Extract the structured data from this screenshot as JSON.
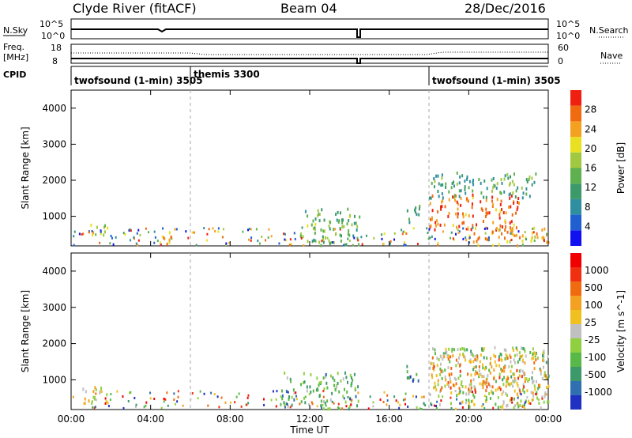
{
  "header": {
    "title": "Clyde River (fitACF)",
    "beam": "Beam 04",
    "date": "28/Dec/2016"
  },
  "strip_panels": {
    "nsky_label": "N.Sky",
    "nsky_ticks": [
      "10^5",
      "10^0"
    ],
    "nsearch_label": "N.Search",
    "nsearch_ticks": [
      "10^5",
      "10^0"
    ],
    "freq_label_1": "Freq.",
    "freq_label_2": "[MHz]",
    "freq_ticks": [
      "18",
      "8"
    ],
    "nave_label": "Nave",
    "nave_ticks": [
      "60",
      "0"
    ],
    "cpid_label": "CPID"
  },
  "cpid_segments": [
    {
      "label": "twofsound (1-min) 3505",
      "start_hour": 0
    },
    {
      "label": "themis 3300",
      "start_hour": 6
    },
    {
      "label": "twofsound (1-min) 3505",
      "start_hour": 18
    }
  ],
  "chart_data": [
    {
      "type": "heatmap",
      "name": "power-panel",
      "x_axis": {
        "range_hours": [
          0,
          24
        ],
        "tick_labels": [
          "00:00",
          "04:00",
          "08:00",
          "12:00",
          "16:00",
          "20:00",
          "00:00"
        ]
      },
      "ylabel": "Slant Range [km]",
      "ylim": [
        180,
        4500
      ],
      "yticks": [
        1000,
        2000,
        3000,
        4000
      ],
      "colorbar": {
        "label": "Power [dB]",
        "range": [
          0,
          32
        ],
        "tick_labels": [
          "4",
          "8",
          "12",
          "16",
          "20",
          "24",
          "28"
        ],
        "colors": [
          "#1010f0",
          "#1f5fd0",
          "#2f8fa0",
          "#3c9a6a",
          "#5fb04f",
          "#a0c840",
          "#e8e020",
          "#f4a020",
          "#f06a10",
          "#f02010"
        ]
      },
      "scatter_regions": [
        {
          "x_hours": [
            0.8,
            1.8
          ],
          "range_km": [
            400,
            800
          ],
          "value_db": 18
        },
        {
          "x_hours": [
            4.5,
            5.0
          ],
          "range_km": [
            180,
            700
          ],
          "value_db": 24
        },
        {
          "x_hours": [
            11.5,
            14.5
          ],
          "range_km": [
            180,
            1200
          ],
          "value_db": 14
        },
        {
          "x_hours": [
            16.8,
            17.5
          ],
          "range_km": [
            800,
            1400
          ],
          "value_db": 12
        },
        {
          "x_hours": [
            18.0,
            22.5
          ],
          "range_km": [
            600,
            1600
          ],
          "value_db": 27
        },
        {
          "x_hours": [
            18.0,
            23.5
          ],
          "range_km": [
            1500,
            2200
          ],
          "value_db": 12
        },
        {
          "x_hours": [
            20.0,
            24.0
          ],
          "range_km": [
            180,
            700
          ],
          "value_db": 24
        }
      ]
    },
    {
      "type": "heatmap",
      "name": "velocity-panel",
      "x_axis": {
        "range_hours": [
          0,
          24
        ],
        "xlabel": "Time UT",
        "tick_labels": [
          "00:00",
          "04:00",
          "08:00",
          "12:00",
          "16:00",
          "20:00",
          "00:00"
        ]
      },
      "ylabel": "Slant Range [km]",
      "ylim": [
        180,
        4500
      ],
      "yticks": [
        1000,
        2000,
        3000,
        4000
      ],
      "colorbar": {
        "label": "Velocity [m s^-1]",
        "range": [
          -1200,
          1200
        ],
        "tick_labels": [
          "1000",
          "500",
          "100",
          "25",
          "-25",
          "-100",
          "-500",
          "-1000"
        ],
        "colors": [
          "#2030c0",
          "#3070b0",
          "#3c9a6a",
          "#58b848",
          "#90d040",
          "#c0c0c0",
          "#f0c020",
          "#f4a020",
          "#f06a10",
          "#f03010",
          "#f00000"
        ]
      },
      "scatter_regions": [
        {
          "x_hours": [
            0.5,
            2.0
          ],
          "range_km": [
            350,
            800
          ],
          "value_ms": 120
        },
        {
          "x_hours": [
            10.5,
            14.5
          ],
          "range_km": [
            180,
            1200
          ],
          "value_ms": -400
        },
        {
          "x_hours": [
            16.8,
            17.5
          ],
          "range_km": [
            900,
            1500
          ],
          "value_ms": -700
        },
        {
          "x_hours": [
            18.0,
            24.0
          ],
          "range_km": [
            200,
            1900
          ],
          "value_ms": -200
        },
        {
          "x_hours": [
            18.0,
            24.0
          ],
          "range_km": [
            600,
            1700
          ],
          "value_ms": 400
        }
      ]
    }
  ]
}
